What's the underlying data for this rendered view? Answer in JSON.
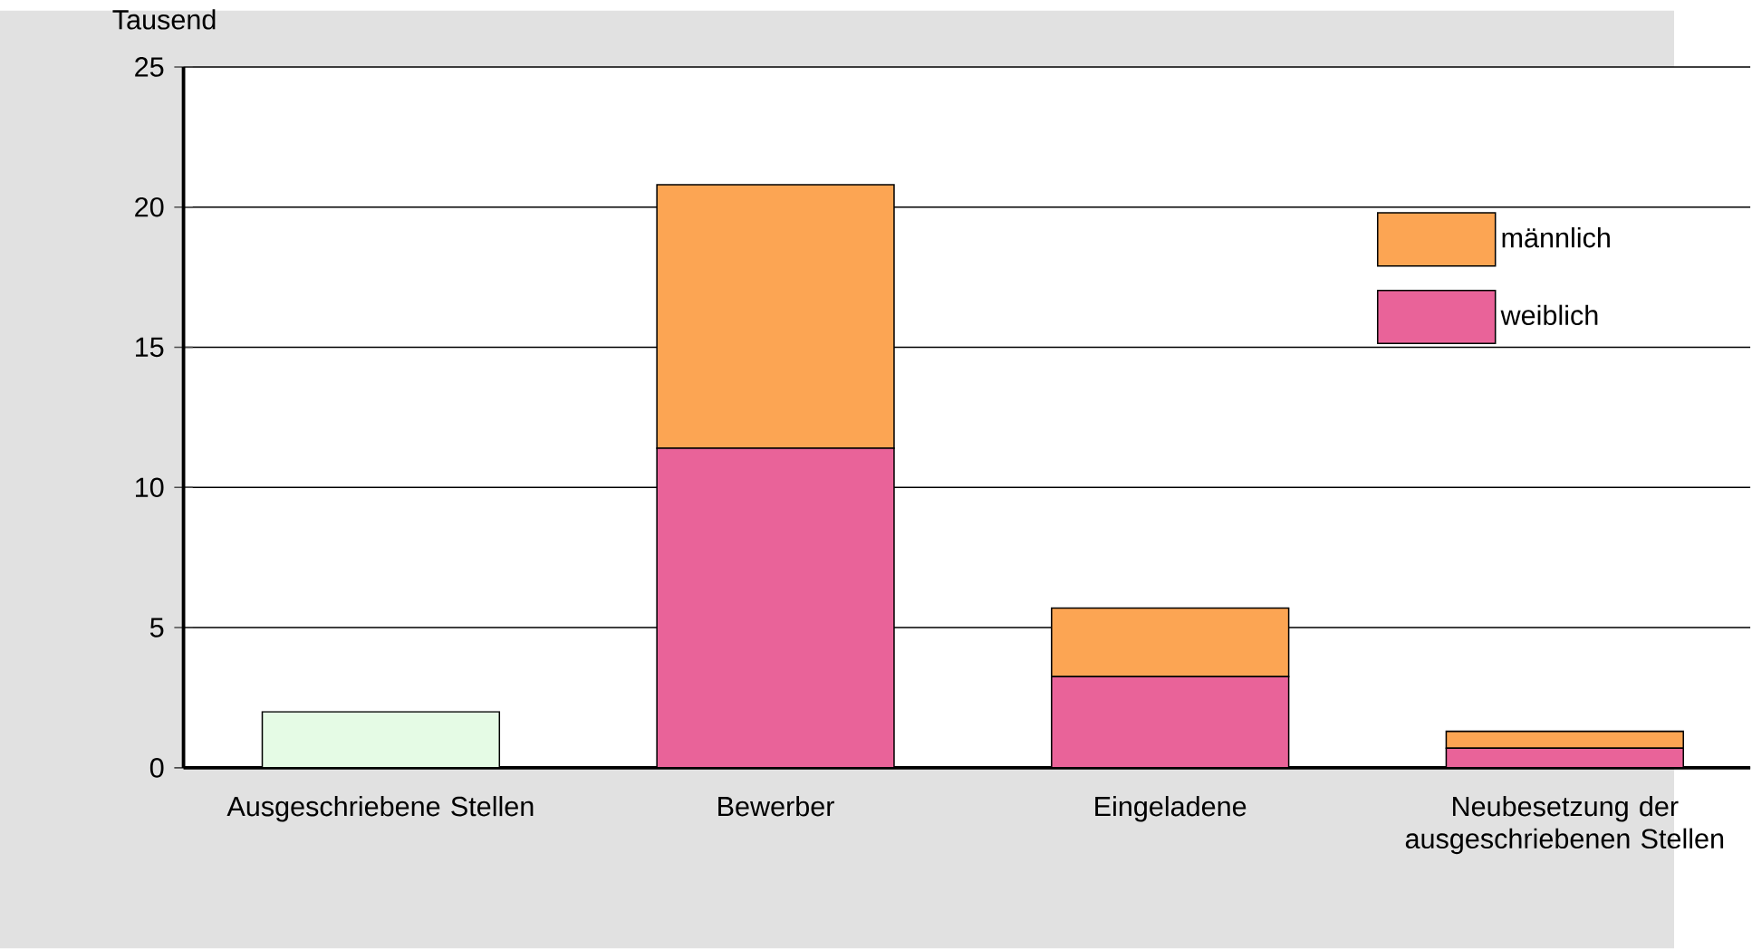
{
  "chart_data": {
    "type": "bar",
    "stacked": true,
    "ylabel": "Tausend",
    "categories": [
      "Ausgeschriebene Stellen",
      "Bewerber",
      "Eingeladene",
      "Neubesetzung der ausgeschriebenen Stellen"
    ],
    "series": [
      {
        "color": "#e5fbe5",
        "values": [
          2.0,
          null,
          null,
          null
        ]
      },
      {
        "name": "weiblich",
        "color": "#e96399",
        "values": [
          null,
          11.4,
          3.25,
          0.7
        ]
      },
      {
        "name": "männlich",
        "color": "#fca553",
        "values": [
          null,
          9.4,
          2.45,
          0.6
        ]
      }
    ],
    "ylim": [
      0,
      25
    ],
    "yticks": [
      0,
      5,
      10,
      15,
      20,
      25
    ],
    "grid": "y",
    "legend": "top right"
  }
}
